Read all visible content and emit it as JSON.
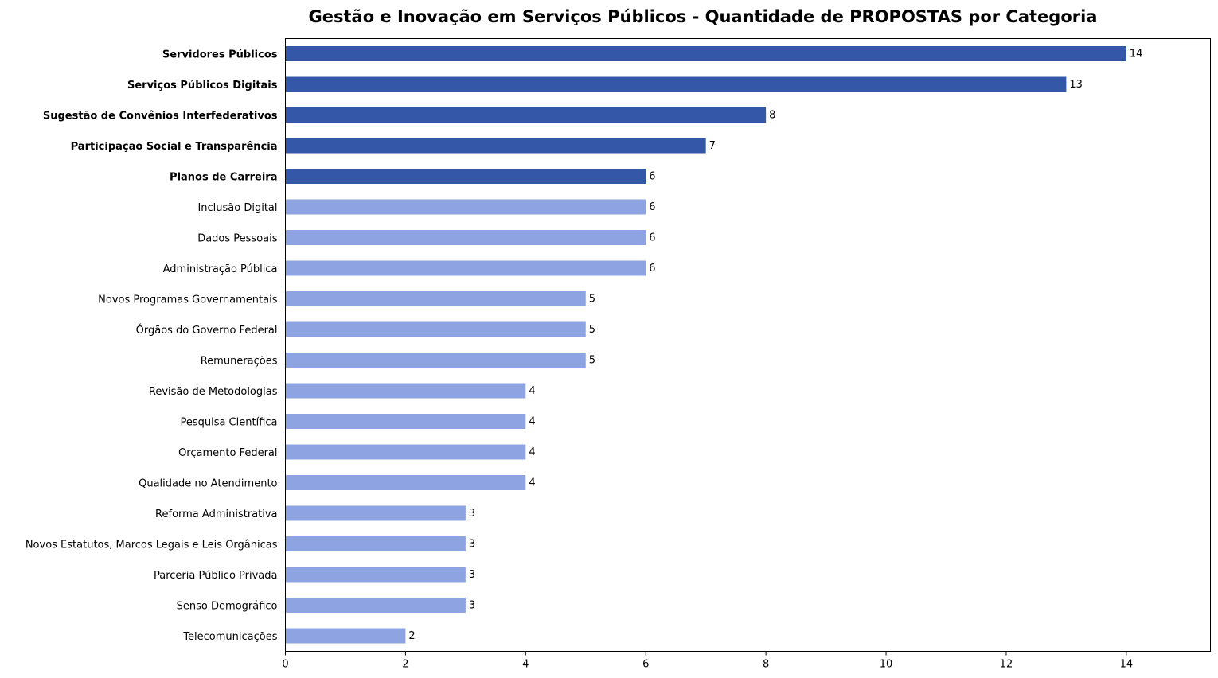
{
  "chart_data": {
    "type": "bar",
    "orientation": "horizontal",
    "title": "Gestão e Inovação em Serviços Públicos - Quantidade de PROPOSTAS por Categoria",
    "xlabel": "",
    "ylabel": "",
    "xlim": [
      0,
      15.4
    ],
    "xticks": [
      0,
      2,
      4,
      6,
      8,
      10,
      12,
      14
    ],
    "grid": false,
    "colors": {
      "highlight": "#3557a8",
      "normal": "#8ea4e2"
    },
    "categories": [
      "Servidores Públicos",
      "Serviços Públicos Digitais",
      "Sugestão de Convênios Interfederativos",
      "Participação Social e Transparência",
      "Planos de Carreira",
      "Inclusão Digital",
      "Dados Pessoais",
      "Administração Pública",
      "Novos Programas Governamentais",
      "Órgãos do Governo Federal",
      "Remunerações",
      "Revisão de Metodologias",
      "Pesquisa Científica",
      "Orçamento Federal",
      "Qualidade no Atendimento",
      "Reforma Administrativa",
      "Novos Estatutos, Marcos Legais e Leis Orgânicas",
      "Parceria Público Privada",
      "Senso Demográfico",
      "Telecomunicações"
    ],
    "values": [
      14,
      13,
      8,
      7,
      6,
      6,
      6,
      6,
      5,
      5,
      5,
      4,
      4,
      4,
      4,
      3,
      3,
      3,
      3,
      2
    ],
    "highlighted_top_n": 5
  }
}
